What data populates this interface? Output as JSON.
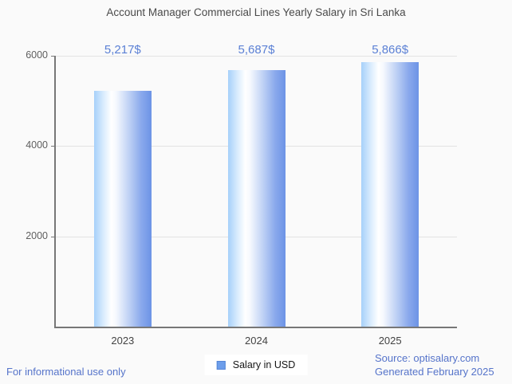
{
  "title": "Account Manager Commercial Lines Yearly Salary in Sri Lanka",
  "chart_data": {
    "type": "bar",
    "categories": [
      "2023",
      "2024",
      "2025"
    ],
    "values": [
      5217,
      5687,
      5866
    ],
    "value_labels": [
      "5,217$",
      "5,687$",
      "5,866$"
    ],
    "series": [
      {
        "name": "Salary in USD",
        "values": [
          5217,
          5687,
          5866
        ]
      }
    ],
    "title": "Account Manager Commercial Lines Yearly Salary in Sri Lanka",
    "xlabel": "",
    "ylabel": "",
    "ylim": [
      0,
      6000
    ],
    "yticks": [
      2000,
      4000,
      6000
    ],
    "grid": true,
    "legend_position": "bottom-center",
    "bar_gradient_stops": [
      {
        "pos": 0,
        "color": "#a6d0fa"
      },
      {
        "pos": 16,
        "color": "#d8ebfd"
      },
      {
        "pos": 30,
        "color": "#ffffff"
      },
      {
        "pos": 38,
        "color": "#f6f9fe"
      },
      {
        "pos": 62,
        "color": "#bccff4"
      },
      {
        "pos": 82,
        "color": "#8aa9ec"
      },
      {
        "pos": 100,
        "color": "#6c93e6"
      }
    ]
  },
  "legend": {
    "label": "Salary in USD",
    "swatch_color": "#6d9eeb"
  },
  "footer": {
    "left": "For informational use only",
    "source": "Source: optisalary.com",
    "generated": "Generated February 2025"
  },
  "colors": {
    "background": "#fafafa",
    "title_text": "#4a4a4a",
    "value_label": "#5b80d5",
    "footer_link": "#5674ca",
    "axis": "#777777",
    "gridline": "#e3e3e3",
    "tick_label": "#5f5f5f"
  }
}
